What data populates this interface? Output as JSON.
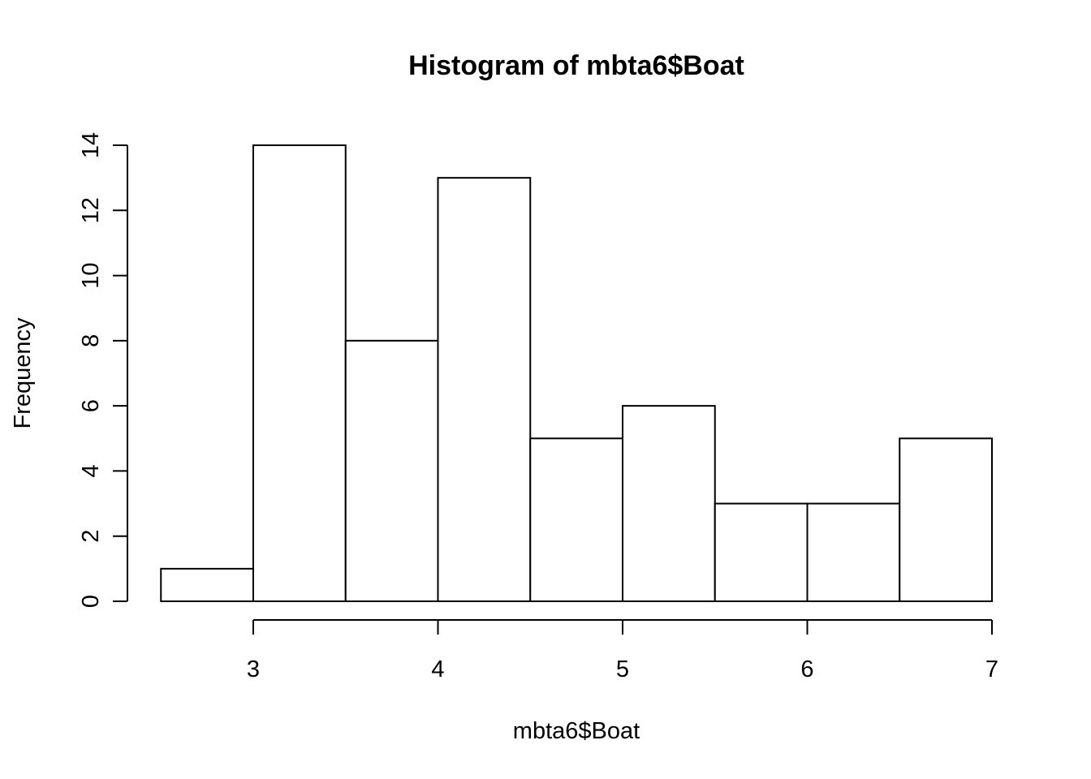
{
  "chart_data": {
    "type": "bar",
    "subtype": "histogram",
    "title": "Histogram of mbta6$Boat",
    "xlabel": "mbta6$Boat",
    "ylabel": "Frequency",
    "bins": [
      {
        "from": 2.5,
        "to": 3.0,
        "count": 1
      },
      {
        "from": 3.0,
        "to": 3.5,
        "count": 14
      },
      {
        "from": 3.5,
        "to": 4.0,
        "count": 8
      },
      {
        "from": 4.0,
        "to": 4.5,
        "count": 13
      },
      {
        "from": 4.5,
        "to": 5.0,
        "count": 5
      },
      {
        "from": 5.0,
        "to": 5.5,
        "count": 6
      },
      {
        "from": 5.5,
        "to": 6.0,
        "count": 3
      },
      {
        "from": 6.0,
        "to": 6.5,
        "count": 3
      },
      {
        "from": 6.5,
        "to": 7.0,
        "count": 5
      }
    ],
    "xlim": [
      2.5,
      7.0
    ],
    "ylim": [
      0,
      14
    ],
    "x_ticks": [
      3,
      4,
      5,
      6,
      7
    ],
    "y_ticks": [
      0,
      2,
      4,
      6,
      8,
      10,
      12,
      14
    ],
    "x_tick_labels": [
      "3",
      "4",
      "5",
      "6",
      "7"
    ],
    "y_tick_labels": [
      "0",
      "2",
      "4",
      "6",
      "8",
      "10",
      "12",
      "14"
    ],
    "grid": false,
    "legend": "none",
    "colors": {
      "bar_fill": "#ffffff",
      "bar_stroke": "#000000"
    }
  }
}
